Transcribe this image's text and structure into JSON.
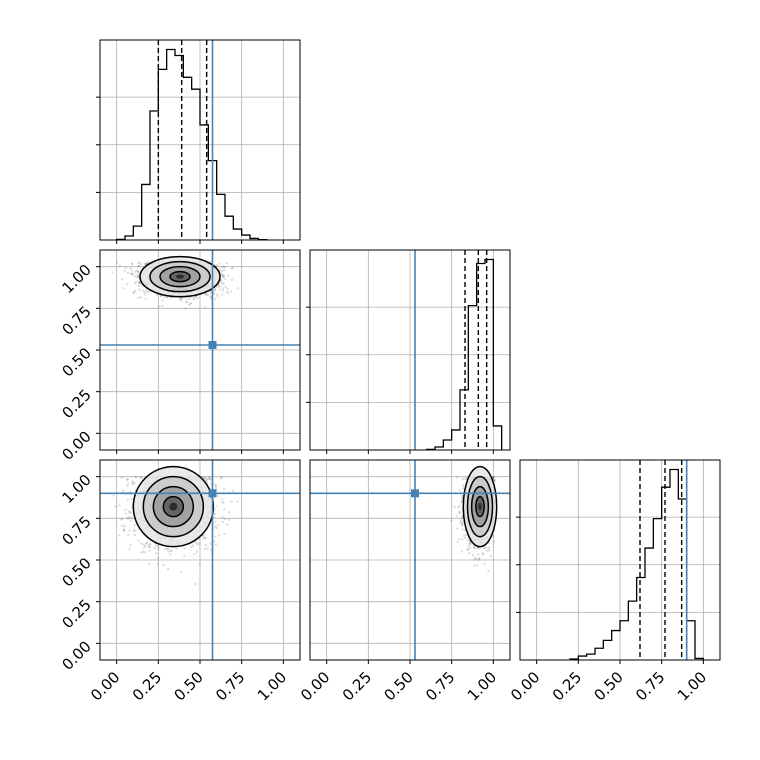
{
  "chart_data": {
    "type": "corner",
    "truth_color": "#4682b4",
    "line_color": "#000000",
    "grid": true,
    "tick_labels": [
      "0.00",
      "0.25",
      "0.50",
      "0.75",
      "1.00"
    ],
    "axis_range": [
      -0.1,
      1.1
    ],
    "truths": [
      0.575,
      0.53,
      0.9
    ],
    "quantile_lines": [
      [
        0.25,
        0.39,
        0.54
      ],
      [
        0.83,
        0.91,
        0.96
      ],
      [
        0.62,
        0.77,
        0.87
      ]
    ],
    "histograms": [
      {
        "parameter_index": 0,
        "bin_edges": [
          0.0,
          0.05,
          0.1,
          0.15,
          0.2,
          0.25,
          0.3,
          0.35,
          0.4,
          0.45,
          0.5,
          0.55,
          0.6,
          0.65,
          0.7,
          0.75,
          0.8,
          0.85,
          0.9
        ],
        "counts": [
          0.003,
          0.02,
          0.07,
          0.28,
          0.65,
          0.86,
          0.96,
          0.93,
          0.82,
          0.76,
          0.58,
          0.4,
          0.23,
          0.12,
          0.055,
          0.025,
          0.008,
          0.002
        ]
      },
      {
        "parameter_index": 1,
        "bin_edges": [
          0.6,
          0.65,
          0.7,
          0.75,
          0.8,
          0.85,
          0.9,
          0.95,
          1.0,
          1.05
        ],
        "counts": [
          0.003,
          0.015,
          0.05,
          0.1,
          0.3,
          0.72,
          0.93,
          0.95,
          0.12
        ]
      },
      {
        "parameter_index": 2,
        "bin_edges": [
          0.2,
          0.25,
          0.3,
          0.35,
          0.4,
          0.45,
          0.5,
          0.55,
          0.6,
          0.65,
          0.7,
          0.75,
          0.8,
          0.85,
          0.9,
          0.95,
          1.0
        ],
        "counts": [
          0.005,
          0.02,
          0.03,
          0.06,
          0.1,
          0.15,
          0.2,
          0.3,
          0.42,
          0.57,
          0.72,
          0.88,
          0.97,
          0.82,
          0.2,
          0.008
        ]
      }
    ],
    "joint_distributions": [
      {
        "x_param": 0,
        "y_param": 1,
        "x_center": 0.38,
        "y_center": 0.94,
        "sd_x": 0.12,
        "sd_y": 0.06,
        "corr": 0.0,
        "y_max": 1.03,
        "x_max": null
      },
      {
        "x_param": 0,
        "y_param": 2,
        "x_center": 0.34,
        "y_center": 0.82,
        "sd_x": 0.12,
        "sd_y": 0.12,
        "corr": 0.1,
        "y_max": 1.0,
        "x_max": null
      },
      {
        "x_param": 1,
        "y_param": 2,
        "x_center": 0.92,
        "y_center": 0.82,
        "sd_x": 0.05,
        "sd_y": 0.12,
        "corr": 0.1,
        "y_max": 1.0,
        "x_max": 1.01
      }
    ]
  }
}
